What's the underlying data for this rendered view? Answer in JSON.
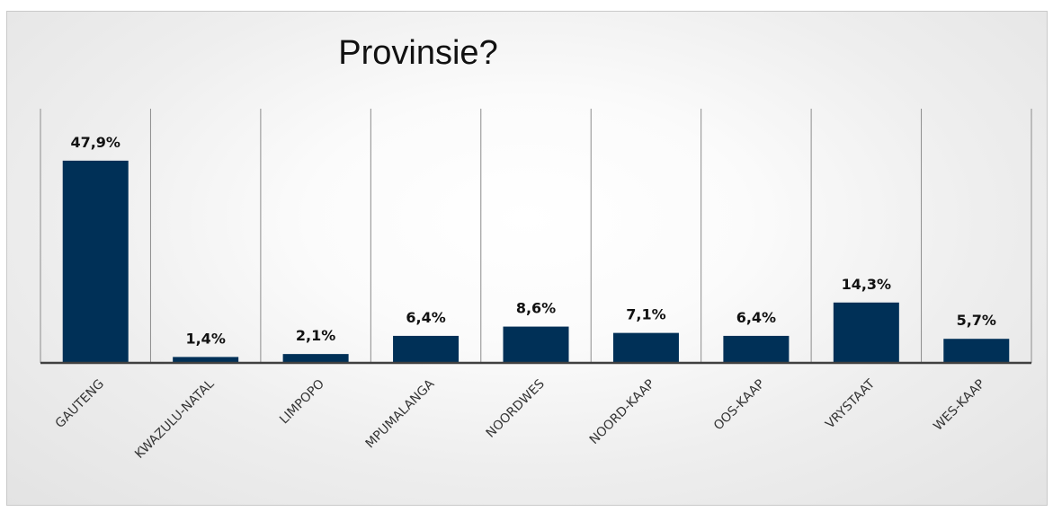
{
  "chart_data": {
    "type": "bar",
    "title": "Provinsie?",
    "categories": [
      "GAUTENG",
      "KWAZULU-NATAL",
      "LIMPOPO",
      "MPUMALANGA",
      "NOORDWES",
      "NOORD-KAAP",
      "OOS-KAAP",
      "VRYSTAAT",
      "WES-KAAP"
    ],
    "values": [
      47.9,
      1.4,
      2.1,
      6.4,
      8.6,
      7.1,
      6.4,
      14.3,
      5.7
    ],
    "value_labels": [
      "47,9%",
      "1,4%",
      "2,1%",
      "6,4%",
      "8,6%",
      "7,1%",
      "6,4%",
      "14,3%",
      "5,7%"
    ],
    "xlabel": "",
    "ylabel": "",
    "ylim": [
      0,
      55
    ],
    "grid": "vertical category separators",
    "legend": "none",
    "bar_color": "#003057"
  }
}
